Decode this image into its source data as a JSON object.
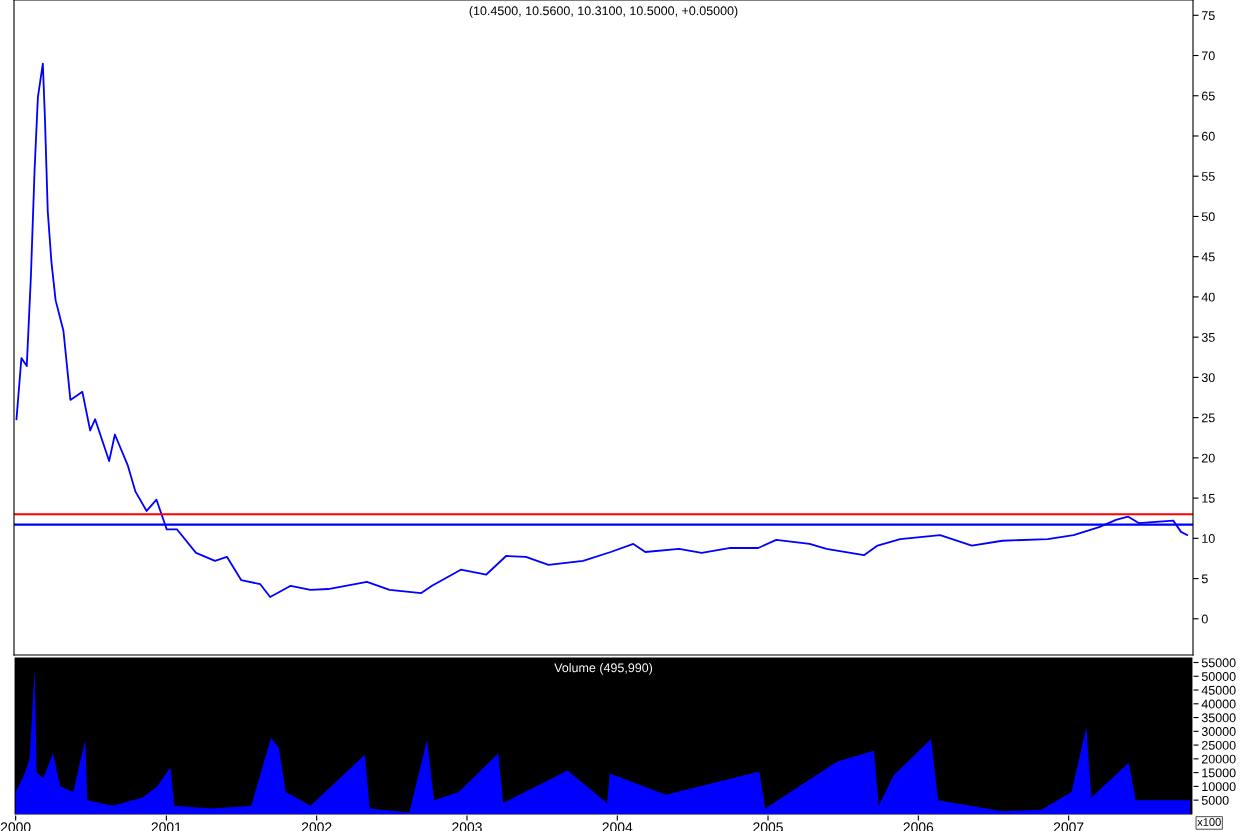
{
  "chart_data": [
    {
      "type": "line",
      "title": "(10.4500, 10.5600, 10.3100, 10.5000, +0.05000)",
      "x": [
        "2000-01-03",
        "2000-01-15",
        "2000-01-28",
        "2000-02-07",
        "2000-02-16",
        "2000-02-24",
        "2000-03-07",
        "2000-03-12",
        "2000-03-19",
        "2000-03-28",
        "2000-04-07",
        "2000-04-26",
        "2000-05-13",
        "2000-06-11",
        "2000-06-30",
        "2000-07-12",
        "2000-08-15",
        "2000-08-29",
        "2000-09-29",
        "2000-10-18",
        "2000-11-14",
        "2000-12-08",
        "2001-01-02",
        "2001-01-27",
        "2001-03-14",
        "2001-04-29",
        "2001-05-28",
        "2001-07-02",
        "2001-08-17",
        "2001-09-10",
        "2001-10-30",
        "2001-12-17",
        "2002-01-29",
        "2002-05-03",
        "2002-06-27",
        "2002-09-12",
        "2002-10-08",
        "2002-12-17",
        "2003-02-17",
        "2003-04-06",
        "2003-05-24",
        "2003-07-18",
        "2003-10-10",
        "2003-12-16",
        "2004-02-09",
        "2004-03-09",
        "2004-05-30",
        "2004-07-24",
        "2004-10-02",
        "2004-12-08",
        "2005-01-21",
        "2005-04-12",
        "2005-05-23",
        "2005-08-22",
        "2005-09-24",
        "2005-11-18",
        "2006-02-23",
        "2006-05-11",
        "2006-07-24",
        "2006-11-11",
        "2007-01-13",
        "2007-03-16",
        "2007-04-26",
        "2007-05-25",
        "2007-06-20",
        "2007-09-12",
        "2007-10-01",
        "2007-10-16"
      ],
      "series": [
        {
          "color": "#0000ff",
          "values": [
            24.8,
            32.4,
            31.4,
            42.5,
            55.8,
            64.8,
            69,
            62.4,
            50.6,
            44.3,
            39.6,
            35.8,
            27.2,
            28.2,
            23.4,
            24.8,
            19.6,
            22.9,
            19.1,
            15.8,
            13.4,
            14.8,
            11.1,
            11.1,
            8.2,
            7.2,
            7.7,
            4.8,
            4.3,
            2.7,
            4.1,
            3.6,
            3.7,
            4.6,
            3.6,
            3.2,
            4.1,
            6.1,
            5.5,
            7.8,
            7.7,
            6.7,
            7.2,
            8.3,
            9.3,
            8.3,
            8.7,
            8.2,
            8.8,
            8.8,
            9.8,
            9.3,
            8.7,
            7.9,
            9.1,
            9.9,
            10.4,
            9.1,
            9.7,
            9.9,
            10.4,
            11.4,
            12.3,
            12.7,
            11.9,
            12.2,
            10.8,
            10.4
          ]
        }
      ],
      "xlim": [
        "1999-12-28",
        "2007-10-30"
      ],
      "ylim": [
        -4.5,
        76.9
      ],
      "yticks": [
        0,
        5,
        10,
        15,
        20,
        25,
        30,
        35,
        40,
        45,
        50,
        55,
        60,
        65,
        70,
        75
      ],
      "tick_labels": "y",
      "grid": false,
      "ref_lines": [
        {
          "axis": "y",
          "value": 13.0,
          "color": "#ff0000"
        },
        {
          "axis": "y",
          "value": 11.7,
          "color": "#0000ff"
        }
      ]
    },
    {
      "type": "area",
      "title": "Volume (495,990)",
      "x": [
        "2000-01-01",
        "2000-01-21",
        "2000-02-04",
        "2000-02-16",
        "2000-02-21",
        "2000-03-08",
        "2000-04-01",
        "2000-04-18",
        "2000-05-20",
        "2000-06-18",
        "2000-06-23",
        "2000-08-24",
        "2000-11-04",
        "2000-12-10",
        "2001-01-11",
        "2001-01-20",
        "2001-04-21",
        "2001-07-26",
        "2001-09-12",
        "2001-10-01",
        "2001-10-18",
        "2001-12-17",
        "2002-04-28",
        "2002-05-10",
        "2002-08-14",
        "2002-09-26",
        "2002-10-13",
        "2002-12-12",
        "2003-03-18",
        "2003-03-30",
        "2003-09-02",
        "2003-12-07",
        "2003-12-14",
        "2004-04-28",
        "2004-12-11",
        "2004-12-25",
        "2005-06-18",
        "2005-09-15",
        "2005-09-27",
        "2005-11-02",
        "2006-02-01",
        "2006-02-18",
        "2006-07-24",
        "2006-10-27",
        "2007-01-08",
        "2007-02-13",
        "2007-02-25",
        "2007-05-27",
        "2007-06-13",
        "2007-10-23"
      ],
      "series": [
        {
          "color": "#0000ff",
          "values": [
            8000,
            14000,
            20000,
            52700,
            15000,
            13000,
            22000,
            10000,
            8000,
            27000,
            5000,
            3000,
            6000,
            10000,
            17000,
            3000,
            2000,
            3000,
            27600,
            24000,
            8000,
            3000,
            21500,
            2000,
            500,
            26900,
            5000,
            8000,
            22000,
            4000,
            15800,
            4000,
            14700,
            7000,
            15400,
            2000,
            19000,
            22900,
            3000,
            14000,
            27200,
            5000,
            1000,
            1500,
            8000,
            31500,
            6000,
            18600,
            5000,
            5000
          ]
        }
      ],
      "xlim": [
        "1999-12-28",
        "2007-10-30"
      ],
      "xticks": [
        {
          "value": "2000-01-01",
          "label": "2000"
        },
        {
          "value": "2001-01-01",
          "label": "2001"
        },
        {
          "value": "2002-01-01",
          "label": "2002"
        },
        {
          "value": "2003-01-01",
          "label": "2003"
        },
        {
          "value": "2004-01-01",
          "label": "2004"
        },
        {
          "value": "2005-01-01",
          "label": "2005"
        },
        {
          "value": "2006-01-01",
          "label": "2006"
        },
        {
          "value": "2007-01-01",
          "label": "2007"
        }
      ],
      "ylim": [
        -400,
        57000
      ],
      "yticks": [
        5000,
        10000,
        15000,
        20000,
        25000,
        30000,
        35000,
        40000,
        45000,
        50000,
        55000
      ],
      "grid": false,
      "annotations": [
        "x100"
      ]
    }
  ]
}
